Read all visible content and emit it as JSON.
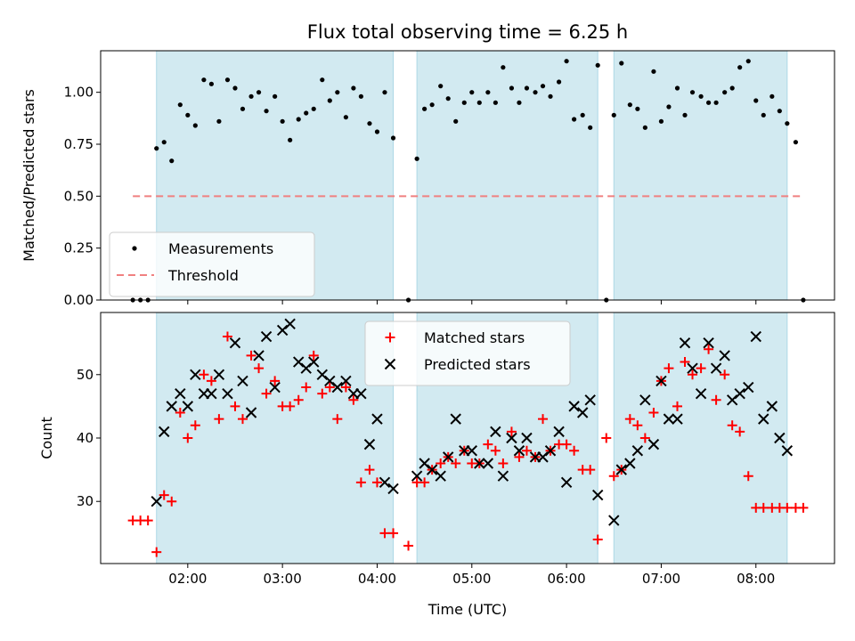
{
  "chart_data": [
    {
      "type": "scatter",
      "title": "Flux total observing time = 6.25 h",
      "xlabel": "",
      "ylabel": "Matched/Predicted stars",
      "x_unit": "hours UTC",
      "xlim": [
        1.08,
        8.83
      ],
      "ylim": [
        0.0,
        1.2
      ],
      "yticks": [
        "0.00",
        "0.25",
        "0.50",
        "0.75",
        "1.00"
      ],
      "xticks": [
        "02:00",
        "03:00",
        "04:00",
        "05:00",
        "06:00",
        "07:00",
        "08:00"
      ],
      "grid": false,
      "legend_position": "lower-left",
      "shaded_intervals": [
        [
          1.67,
          4.17
        ],
        [
          4.42,
          6.33
        ],
        [
          6.5,
          8.33
        ]
      ],
      "shade_color": "#add8e6",
      "series": [
        {
          "name": "Measurements",
          "color": "#000000",
          "marker": "dot",
          "x": [
            1.42,
            1.5,
            1.58,
            1.67,
            1.75,
            1.83,
            1.92,
            2.0,
            2.08,
            2.17,
            2.25,
            2.33,
            2.42,
            2.5,
            2.58,
            2.67,
            2.75,
            2.83,
            2.92,
            3.0,
            3.08,
            3.17,
            3.25,
            3.33,
            3.42,
            3.5,
            3.58,
            3.67,
            3.75,
            3.83,
            3.92,
            4.0,
            4.08,
            4.17,
            4.33,
            4.42,
            4.5,
            4.58,
            4.67,
            4.75,
            4.83,
            4.92,
            5.0,
            5.08,
            5.17,
            5.25,
            5.33,
            5.42,
            5.5,
            5.58,
            5.67,
            5.75,
            5.83,
            5.92,
            6.0,
            6.08,
            6.17,
            6.25,
            6.33,
            6.42,
            6.5,
            6.58,
            6.67,
            6.75,
            6.83,
            6.92,
            7.0,
            7.08,
            7.17,
            7.25,
            7.33,
            7.42,
            7.5,
            7.58,
            7.67,
            7.75,
            7.83,
            7.92,
            8.0,
            8.08,
            8.17,
            8.25,
            8.33,
            8.42,
            8.5
          ],
          "y": [
            0.0,
            0.0,
            0.0,
            0.73,
            0.76,
            0.67,
            0.94,
            0.89,
            0.84,
            1.06,
            1.04,
            0.86,
            1.06,
            1.02,
            0.92,
            0.98,
            1.0,
            0.91,
            0.98,
            0.86,
            0.77,
            0.87,
            0.9,
            0.92,
            1.06,
            0.96,
            1.0,
            0.88,
            1.02,
            0.98,
            0.85,
            0.81,
            1.0,
            0.78,
            0.0,
            0.68,
            0.92,
            0.94,
            1.03,
            0.97,
            0.86,
            0.95,
            1.0,
            0.95,
            1.0,
            0.95,
            1.12,
            1.02,
            0.95,
            1.02,
            1.0,
            1.03,
            0.98,
            1.05,
            1.15,
            0.87,
            0.89,
            0.83,
            1.13,
            0.0,
            0.89,
            1.14,
            0.94,
            0.92,
            0.83,
            1.1,
            0.86,
            0.93,
            1.02,
            0.89,
            1.0,
            0.98,
            0.95,
            0.95,
            1.0,
            1.02,
            1.12,
            1.15,
            0.96,
            0.89,
            0.98,
            0.91,
            0.85,
            0.76,
            0.0
          ]
        },
        {
          "name": "Threshold",
          "color": "#f08080",
          "dashed": true,
          "x": [
            1.42,
            8.5
          ],
          "y": [
            0.5,
            0.5
          ]
        }
      ]
    },
    {
      "type": "scatter",
      "title": "",
      "xlabel": "Time (UTC)",
      "ylabel": "Count",
      "x_unit": "hours UTC",
      "xlim": [
        1.08,
        8.83
      ],
      "ylim": [
        20.2,
        59.8
      ],
      "yticks": [
        "30",
        "40",
        "50"
      ],
      "xticks": [
        "02:00",
        "03:00",
        "04:00",
        "05:00",
        "06:00",
        "07:00",
        "08:00"
      ],
      "grid": false,
      "legend_position": "upper-center",
      "shaded_intervals": [
        [
          1.67,
          4.17
        ],
        [
          4.42,
          6.33
        ],
        [
          6.5,
          8.33
        ]
      ],
      "shade_color": "#add8e6",
      "series": [
        {
          "name": "Matched stars",
          "color": "#ff0000",
          "marker": "plus",
          "x": [
            1.42,
            1.5,
            1.58,
            1.67,
            1.75,
            1.83,
            1.92,
            2.0,
            2.08,
            2.17,
            2.25,
            2.33,
            2.42,
            2.5,
            2.58,
            2.67,
            2.75,
            2.83,
            2.92,
            3.0,
            3.08,
            3.17,
            3.25,
            3.33,
            3.42,
            3.5,
            3.58,
            3.67,
            3.75,
            3.83,
            3.92,
            4.0,
            4.08,
            4.17,
            4.33,
            4.42,
            4.5,
            4.58,
            4.67,
            4.75,
            4.83,
            4.92,
            5.0,
            5.08,
            5.17,
            5.25,
            5.33,
            5.42,
            5.5,
            5.58,
            5.67,
            5.75,
            5.83,
            5.92,
            6.0,
            6.08,
            6.17,
            6.25,
            6.33,
            6.42,
            6.5,
            6.58,
            6.67,
            6.75,
            6.83,
            6.92,
            7.0,
            7.08,
            7.17,
            7.25,
            7.33,
            7.42,
            7.5,
            7.58,
            7.67,
            7.75,
            7.83,
            7.92,
            8.0,
            8.08,
            8.17,
            8.25,
            8.33,
            8.42,
            8.5
          ],
          "y": [
            27,
            27,
            27,
            22,
            31,
            30,
            44,
            40,
            42,
            50,
            49,
            43,
            56,
            45,
            43,
            53,
            51,
            47,
            49,
            45,
            45,
            46,
            48,
            53,
            47,
            48,
            43,
            48,
            46,
            33,
            35,
            33,
            25,
            25,
            23,
            33,
            33,
            35,
            36,
            37,
            36,
            38,
            36,
            36,
            39,
            38,
            36,
            41,
            37,
            38,
            37,
            43,
            38,
            39,
            39,
            38,
            35,
            35,
            24,
            40,
            34,
            35,
            43,
            42,
            40,
            44,
            49,
            51,
            45,
            52,
            50,
            51,
            54,
            46,
            50,
            42,
            41,
            34,
            29,
            29,
            29,
            29,
            29,
            29,
            29
          ]
        },
        {
          "name": "Predicted stars",
          "color": "#000000",
          "marker": "x",
          "x": [
            1.67,
            1.75,
            1.83,
            1.92,
            2.0,
            2.08,
            2.17,
            2.25,
            2.33,
            2.42,
            2.5,
            2.58,
            2.67,
            2.75,
            2.83,
            2.92,
            3.0,
            3.08,
            3.17,
            3.25,
            3.33,
            3.42,
            3.5,
            3.58,
            3.67,
            3.75,
            3.83,
            3.92,
            4.0,
            4.08,
            4.17,
            4.42,
            4.5,
            4.58,
            4.67,
            4.75,
            4.83,
            4.92,
            5.0,
            5.08,
            5.17,
            5.25,
            5.33,
            5.42,
            5.5,
            5.58,
            5.67,
            5.75,
            5.83,
            5.92,
            6.0,
            6.08,
            6.17,
            6.25,
            6.33,
            6.5,
            6.58,
            6.67,
            6.75,
            6.83,
            6.92,
            7.0,
            7.08,
            7.17,
            7.25,
            7.33,
            7.42,
            7.5,
            7.58,
            7.67,
            7.75,
            7.83,
            7.92,
            8.0,
            8.08,
            8.17,
            8.25,
            8.33
          ],
          "y": [
            30,
            41,
            45,
            47,
            45,
            50,
            47,
            47,
            50,
            47,
            55,
            49,
            44,
            53,
            56,
            48,
            57,
            58,
            52,
            51,
            52,
            50,
            49,
            48,
            49,
            47,
            47,
            39,
            43,
            33,
            32,
            34,
            36,
            35,
            34,
            37,
            43,
            38,
            38,
            36,
            36,
            41,
            34,
            40,
            38,
            40,
            37,
            37,
            38,
            41,
            33,
            45,
            44,
            46,
            31,
            27,
            35,
            36,
            38,
            46,
            39,
            49,
            43,
            43,
            55,
            51,
            47,
            55,
            51,
            53,
            46,
            47,
            48,
            56,
            43,
            45,
            40,
            38
          ]
        }
      ]
    }
  ]
}
